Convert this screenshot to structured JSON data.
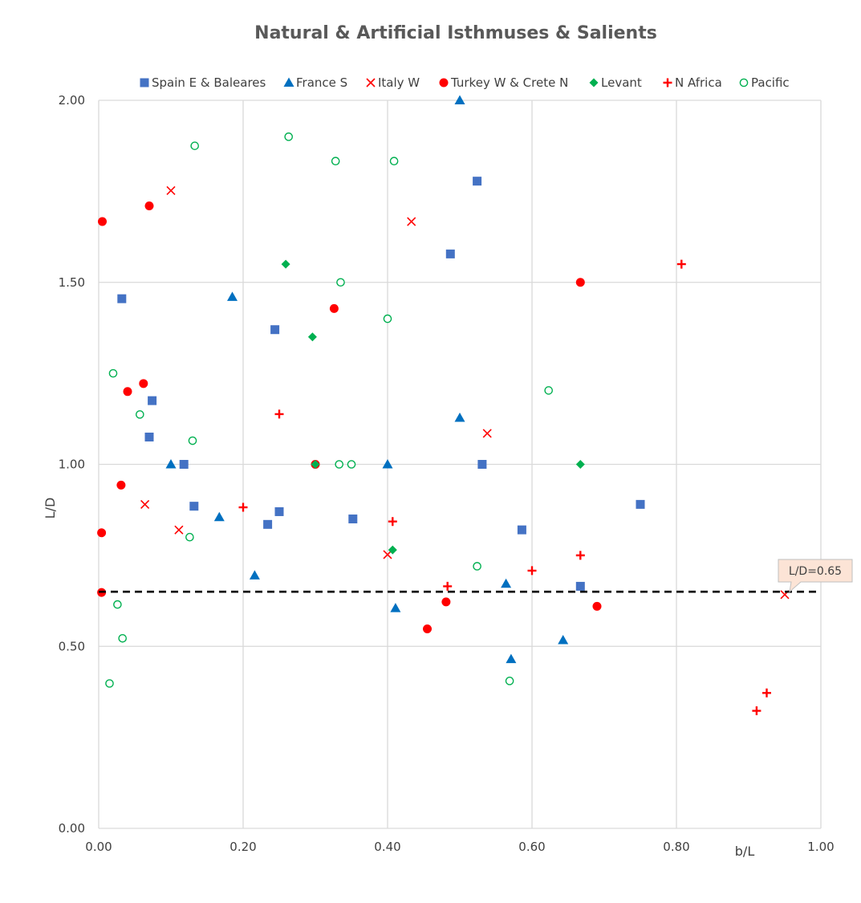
{
  "chart_data": {
    "type": "scatter",
    "title": "Natural & Artificial Isthmuses & Salients",
    "xlabel": "b/L",
    "ylabel": "L/D",
    "xlim": [
      0,
      1
    ],
    "ylim": [
      0,
      2
    ],
    "x_ticks": [
      "0.00",
      "0.20",
      "0.40",
      "0.60",
      "0.80",
      "1.00"
    ],
    "y_ticks": [
      "0.00",
      "0.50",
      "1.00",
      "1.50",
      "2.00"
    ],
    "grid": true,
    "legend_position": "top",
    "series": [
      {
        "name": "Spain E & Baleares",
        "marker": "square",
        "color": "#4472C4",
        "points": [
          [
            0.032,
            1.455
          ],
          [
            0.074,
            1.175
          ],
          [
            0.07,
            1.075
          ],
          [
            0.118,
            1.0
          ],
          [
            0.132,
            0.885
          ],
          [
            0.234,
            0.835
          ],
          [
            0.25,
            0.87
          ],
          [
            0.244,
            1.37
          ],
          [
            0.352,
            0.85
          ],
          [
            0.487,
            1.578
          ],
          [
            0.524,
            1.778
          ],
          [
            0.531,
            1.0
          ],
          [
            0.586,
            0.82
          ],
          [
            0.667,
            0.665
          ],
          [
            0.75,
            0.89
          ]
        ]
      },
      {
        "name": "France S",
        "marker": "triangle",
        "color": "#0070C0",
        "points": [
          [
            0.1,
            1.0
          ],
          [
            0.167,
            0.855
          ],
          [
            0.185,
            1.46
          ],
          [
            0.216,
            0.695
          ],
          [
            0.4,
            1.0
          ],
          [
            0.411,
            0.605
          ],
          [
            0.5,
            1.128
          ],
          [
            0.5,
            2.0
          ],
          [
            0.564,
            0.672
          ],
          [
            0.571,
            0.465
          ],
          [
            0.643,
            0.517
          ]
        ]
      },
      {
        "name": "Italy W",
        "marker": "x",
        "color": "#FF0000",
        "points": [
          [
            0.064,
            0.89
          ],
          [
            0.1,
            1.752
          ],
          [
            0.111,
            0.82
          ],
          [
            0.4,
            0.752
          ],
          [
            0.433,
            1.667
          ],
          [
            0.538,
            1.085
          ],
          [
            0.95,
            0.642
          ]
        ]
      },
      {
        "name": "Turkey W & Crete N",
        "marker": "circle",
        "color": "#FF0000",
        "points": [
          [
            0.005,
            1.667
          ],
          [
            0.004,
            0.812
          ],
          [
            0.004,
            0.648
          ],
          [
            0.031,
            0.943
          ],
          [
            0.04,
            1.2
          ],
          [
            0.062,
            1.222
          ],
          [
            0.07,
            1.71
          ],
          [
            0.326,
            1.428
          ],
          [
            0.3,
            1.0
          ],
          [
            0.455,
            0.548
          ],
          [
            0.481,
            0.622
          ],
          [
            0.667,
            1.5
          ],
          [
            0.69,
            0.61
          ]
        ]
      },
      {
        "name": "Levant",
        "marker": "diamond",
        "color": "#00B050",
        "points": [
          [
            0.259,
            1.55
          ],
          [
            0.296,
            1.35
          ],
          [
            0.3,
            1.0
          ],
          [
            0.407,
            0.765
          ],
          [
            0.667,
            1.0
          ]
        ]
      },
      {
        "name": "N Africa",
        "marker": "plus",
        "color": "#FF0000",
        "points": [
          [
            0.2,
            0.882
          ],
          [
            0.25,
            1.138
          ],
          [
            0.407,
            0.843
          ],
          [
            0.483,
            0.665
          ],
          [
            0.6,
            0.708
          ],
          [
            0.667,
            0.75
          ],
          [
            0.807,
            1.55
          ],
          [
            0.911,
            0.323
          ],
          [
            0.925,
            0.372
          ]
        ]
      },
      {
        "name": "Pacific",
        "marker": "open-circle",
        "color": "#00B050",
        "points": [
          [
            0.015,
            0.398
          ],
          [
            0.02,
            1.25
          ],
          [
            0.026,
            0.615
          ],
          [
            0.033,
            0.522
          ],
          [
            0.057,
            1.137
          ],
          [
            0.126,
            0.8
          ],
          [
            0.13,
            1.065
          ],
          [
            0.133,
            1.875
          ],
          [
            0.263,
            1.9
          ],
          [
            0.328,
            1.833
          ],
          [
            0.333,
            1.0
          ],
          [
            0.335,
            1.5
          ],
          [
            0.35,
            1.0
          ],
          [
            0.4,
            1.4
          ],
          [
            0.409,
            1.833
          ],
          [
            0.524,
            0.72
          ],
          [
            0.569,
            0.405
          ],
          [
            0.623,
            1.203
          ]
        ]
      }
    ],
    "annotations": [
      {
        "text": "L/D=0.65",
        "y": 0.65,
        "line": "dashed",
        "color": "#000000"
      }
    ]
  }
}
